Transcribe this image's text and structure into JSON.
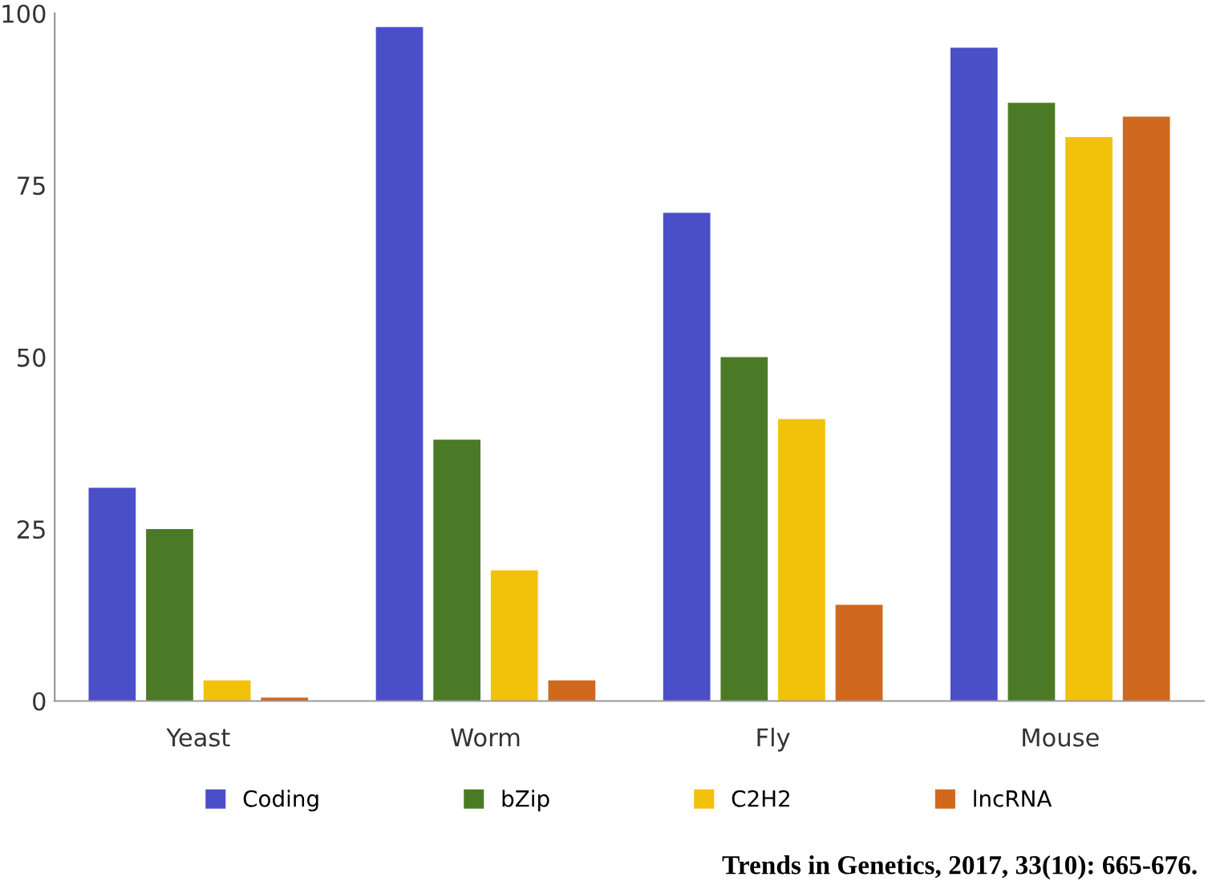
{
  "chart_data": {
    "type": "bar",
    "categories": [
      "Yeast",
      "Worm",
      "Fly",
      "Mouse"
    ],
    "series": [
      {
        "name": "Coding",
        "color": "#4a4fc8",
        "values": [
          31,
          98,
          71,
          95
        ]
      },
      {
        "name": "bZip",
        "color": "#4b7a26",
        "values": [
          25,
          38,
          50,
          87
        ]
      },
      {
        "name": "C2H2",
        "color": "#f2c20a",
        "values": [
          3,
          19,
          41,
          82
        ]
      },
      {
        "name": "lncRNA",
        "color": "#d0691e",
        "values": [
          0.5,
          3,
          14,
          85
        ]
      }
    ],
    "ylim": [
      0,
      100
    ],
    "yticks": [
      0,
      25,
      50,
      75,
      100
    ],
    "grid": false,
    "legend": "bottom",
    "annotations": [
      "Trends in Genetics, 2017, 33(10): 665-676."
    ]
  }
}
